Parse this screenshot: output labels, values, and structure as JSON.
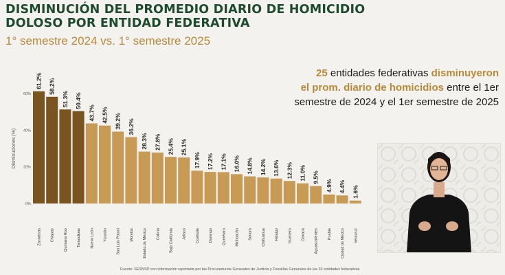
{
  "header": {
    "title_line1": "DISMINUCIÓN DEL PROMEDIO DIARIO DE HOMICIDIO",
    "title_line2": "DOLOSO POR ENTIDAD FEDERATIVA",
    "subtitle": "1° semestre 2024 vs. 1° semestre 2025"
  },
  "callout": {
    "part1": "25",
    "part2": " entidades federativas ",
    "part3": "disminuyeron",
    "part4": "el prom. diario de homicidios",
    "part5": " entre el 1er semestre de 2024 y el 1er semestre de 2025"
  },
  "source_note": "Fuente: SESNSP con información reportada por las Procuradurías Generales de Justicia y Fiscalías Generales de las 32 entidades federativas",
  "colors": {
    "bar_dark": "#7a5420",
    "bar_light": "#c79a55",
    "title": "#1e4b2e",
    "accent": "#b78a3a"
  },
  "chart_data": {
    "type": "bar",
    "ylabel": "Disminuciones (%)",
    "ylim": [
      0,
      70
    ],
    "yticks": [
      "0%",
      "20%",
      "40%",
      "60%"
    ],
    "grid": false,
    "categories": [
      "Zacatecas",
      "Chiapas",
      "Quintana Roo",
      "Tamaulipas",
      "Nuevo León",
      "Yucatán",
      "San Luis Potosí",
      "Morelos",
      "Estado de México",
      "Colima",
      "Baja California",
      "Jalisco",
      "Coahuila",
      "Durango",
      "Querétaro",
      "Michoacán",
      "Sonora",
      "Chihuahua",
      "Hidalgo",
      "Guerrero",
      "Oaxaca",
      "Aguascalientes",
      "Puebla",
      "Ciudad de México",
      "Veracruz"
    ],
    "values": [
      61.2,
      58.2,
      51.3,
      50.4,
      43.7,
      42.5,
      39.2,
      36.2,
      28.3,
      27.8,
      25.4,
      25.1,
      17.9,
      17.2,
      17.1,
      16.0,
      14.8,
      14.2,
      13.6,
      12.3,
      11.0,
      9.5,
      4.9,
      4.4,
      1.6
    ],
    "labels": [
      "61.2%",
      "58.2%",
      "51.3%",
      "50.4%",
      "43.7%",
      "42.5%",
      "39.2%",
      "36.2%",
      "28.3%",
      "27.8%",
      "25.4%",
      "25.1%",
      "17.9%",
      "17.2%",
      "17.1%",
      "16.0%",
      "14.8%",
      "14.2%",
      "13.6%",
      "12.3%",
      "11.0%",
      "9.5%",
      "4.9%",
      "4.4%",
      "1.6%"
    ]
  }
}
